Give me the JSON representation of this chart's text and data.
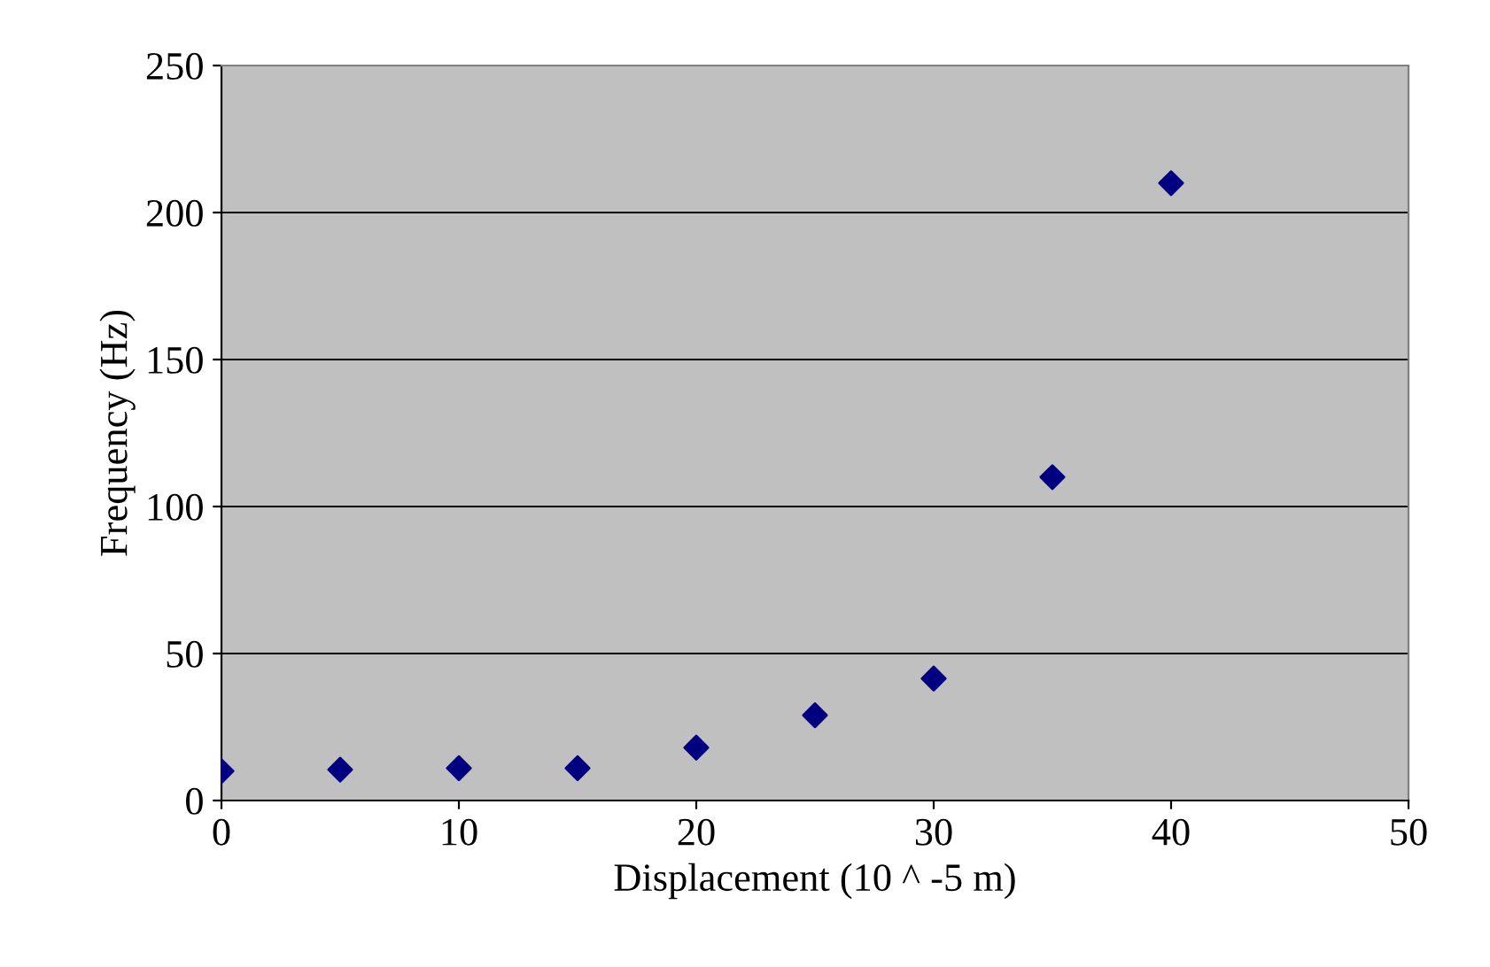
{
  "chart_data": {
    "type": "scatter",
    "xlabel": "Displacement (10 ^ -5 m)",
    "ylabel": "Frequency (Hz)",
    "x": [
      0,
      5,
      10,
      15,
      20,
      25,
      30,
      35,
      40
    ],
    "series": [
      {
        "color": "#000080",
        "values": [
          10,
          10.5,
          11,
          11,
          18,
          29,
          41.5,
          110,
          210
        ]
      }
    ],
    "xlim": [
      0,
      50
    ],
    "xticks": [
      0,
      10,
      20,
      30,
      40,
      50
    ],
    "ylim": [
      0,
      250
    ],
    "yticks": [
      0,
      50,
      100,
      150,
      200,
      250
    ],
    "grid": "y",
    "marker": "diamond",
    "legend": false
  }
}
